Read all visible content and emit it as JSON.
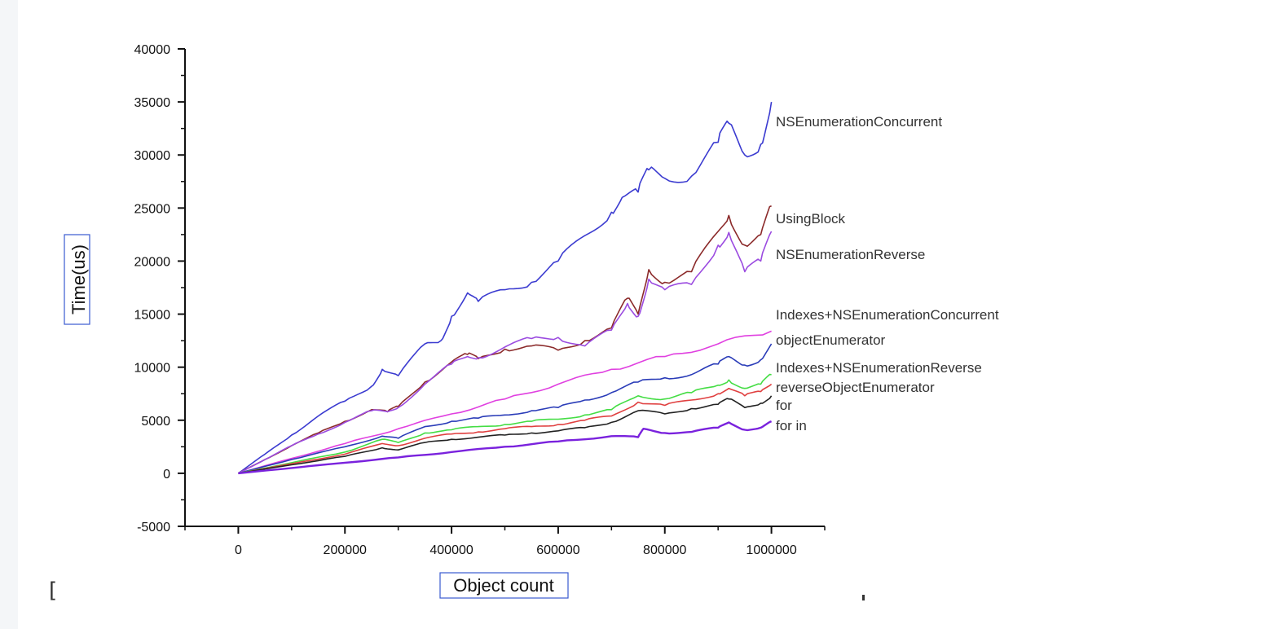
{
  "chart_data": {
    "type": "line",
    "xlabel": "Object count",
    "ylabel": "Time(us)",
    "xlim": [
      -100000,
      1100000
    ],
    "ylim": [
      -5000,
      40000
    ],
    "xticks": [
      0,
      200000,
      400000,
      600000,
      800000,
      1000000
    ],
    "xtick_labels": [
      "0",
      "200000",
      "400000",
      "600000",
      "800000",
      "1000000"
    ],
    "yticks": [
      -5000,
      0,
      5000,
      10000,
      15000,
      20000,
      25000,
      30000,
      35000,
      40000
    ],
    "ytick_labels": [
      "-5000",
      "0",
      "5000",
      "10000",
      "15000",
      "20000",
      "25000",
      "30000",
      "35000",
      "40000"
    ],
    "grid": false,
    "legend": "end-of-line labels",
    "series": [
      {
        "name": "NSEnumerationConcurrent",
        "color": "#3b3bd0",
        "x": [
          0,
          50000,
          100000,
          150000,
          200000,
          250000,
          270000,
          300000,
          350000,
          380000,
          400000,
          430000,
          450000,
          500000,
          550000,
          600000,
          650000,
          700000,
          720000,
          750000,
          770000,
          800000,
          850000,
          900000,
          920000,
          950000,
          980000,
          1000000
        ],
        "values": [
          0,
          1800,
          3600,
          5400,
          6800,
          8200,
          9800,
          9200,
          12200,
          12500,
          14800,
          17000,
          16200,
          17300,
          18000,
          20000,
          22400,
          24600,
          26000,
          26500,
          28600,
          27800,
          28000,
          31200,
          33000,
          30000,
          31000,
          35000
        ]
      },
      {
        "name": "UsingBlock",
        "color": "#8b2a2a",
        "x": [
          0,
          50000,
          100000,
          150000,
          200000,
          250000,
          280000,
          300000,
          350000,
          400000,
          430000,
          450000,
          500000,
          550000,
          600000,
          650000,
          700000,
          730000,
          750000,
          770000,
          800000,
          850000,
          900000,
          920000,
          950000,
          980000,
          1000000
        ],
        "values": [
          0,
          1300,
          2600,
          3800,
          4900,
          6000,
          5800,
          6300,
          8600,
          10500,
          11200,
          10800,
          11700,
          12000,
          11600,
          12500,
          13700,
          16500,
          15000,
          19200,
          18000,
          19000,
          22800,
          24300,
          21500,
          22500,
          25200
        ]
      },
      {
        "name": "NSEnumerationReverse",
        "color": "#9b4be0",
        "x": [
          0,
          50000,
          100000,
          150000,
          200000,
          250000,
          280000,
          300000,
          350000,
          400000,
          430000,
          450000,
          500000,
          550000,
          600000,
          650000,
          700000,
          730000,
          750000,
          770000,
          800000,
          850000,
          900000,
          920000,
          950000,
          980000,
          1000000
        ],
        "values": [
          0,
          1300,
          2600,
          3700,
          4800,
          5900,
          5800,
          6200,
          8400,
          10300,
          11000,
          10900,
          11900,
          12700,
          12800,
          12000,
          13500,
          16000,
          14800,
          18300,
          17300,
          17800,
          21500,
          22700,
          19000,
          20000,
          22800
        ]
      },
      {
        "name": "Indexes+NSEnumerationConcurrent",
        "color": "#e040e0",
        "x": [
          0,
          100000,
          200000,
          300000,
          400000,
          500000,
          600000,
          700000,
          800000,
          900000,
          1000000
        ],
        "values": [
          0,
          1400,
          2800,
          4200,
          5600,
          7000,
          8400,
          9800,
          11000,
          12200,
          13400
        ]
      },
      {
        "name": "objectEnumerator",
        "color": "#2a3cb8",
        "x": [
          0,
          100000,
          200000,
          270000,
          300000,
          350000,
          400000,
          450000,
          500000,
          550000,
          600000,
          650000,
          700000,
          750000,
          800000,
          850000,
          900000,
          920000,
          950000,
          980000,
          1000000
        ],
        "values": [
          0,
          1300,
          2500,
          3500,
          3300,
          4400,
          4900,
          5200,
          5500,
          5900,
          6200,
          6900,
          7600,
          8600,
          9000,
          9300,
          10300,
          11000,
          10200,
          10700,
          12200
        ]
      },
      {
        "name": "Indexes+NSEnumerationReverse",
        "color": "#44dd44",
        "x": [
          0,
          100000,
          200000,
          270000,
          300000,
          350000,
          400000,
          450000,
          500000,
          550000,
          600000,
          650000,
          700000,
          750000,
          800000,
          850000,
          900000,
          920000,
          950000,
          980000,
          1000000
        ],
        "values": [
          0,
          1000,
          2000,
          3200,
          2900,
          3800,
          4100,
          4400,
          4600,
          4900,
          5100,
          5500,
          6000,
          7300,
          7000,
          7600,
          8300,
          8800,
          8000,
          8400,
          9300
        ]
      },
      {
        "name": "reverseObjectEnumerator",
        "color": "#e04040",
        "x": [
          0,
          100000,
          200000,
          270000,
          300000,
          350000,
          400000,
          450000,
          500000,
          550000,
          600000,
          650000,
          700000,
          750000,
          800000,
          850000,
          900000,
          920000,
          950000,
          980000,
          1000000
        ],
        "values": [
          0,
          900,
          1800,
          2800,
          2600,
          3300,
          3700,
          3900,
          4200,
          4400,
          4600,
          5000,
          5400,
          6700,
          6400,
          6900,
          7500,
          8000,
          7300,
          7700,
          8400
        ]
      },
      {
        "name": "for",
        "color": "#222222",
        "x": [
          0,
          100000,
          200000,
          270000,
          300000,
          350000,
          400000,
          450000,
          500000,
          550000,
          600000,
          650000,
          700000,
          750000,
          800000,
          850000,
          900000,
          920000,
          950000,
          980000,
          1000000
        ],
        "values": [
          0,
          800,
          1600,
          2400,
          2200,
          2900,
          3200,
          3400,
          3600,
          3800,
          4000,
          4300,
          4800,
          5900,
          5600,
          6100,
          6500,
          7000,
          6200,
          6600,
          7300
        ]
      },
      {
        "name": "for in",
        "color": "#7a22dd",
        "x": [
          0,
          100000,
          200000,
          300000,
          400000,
          500000,
          600000,
          700000,
          750000,
          760000,
          800000,
          850000,
          900000,
          920000,
          950000,
          980000,
          1000000
        ],
        "values": [
          0,
          500,
          1000,
          1500,
          2000,
          2500,
          3000,
          3500,
          3400,
          4200,
          3800,
          3900,
          4300,
          4800,
          4100,
          4300,
          4900
        ]
      }
    ]
  },
  "decor": {
    "bracket": "["
  }
}
